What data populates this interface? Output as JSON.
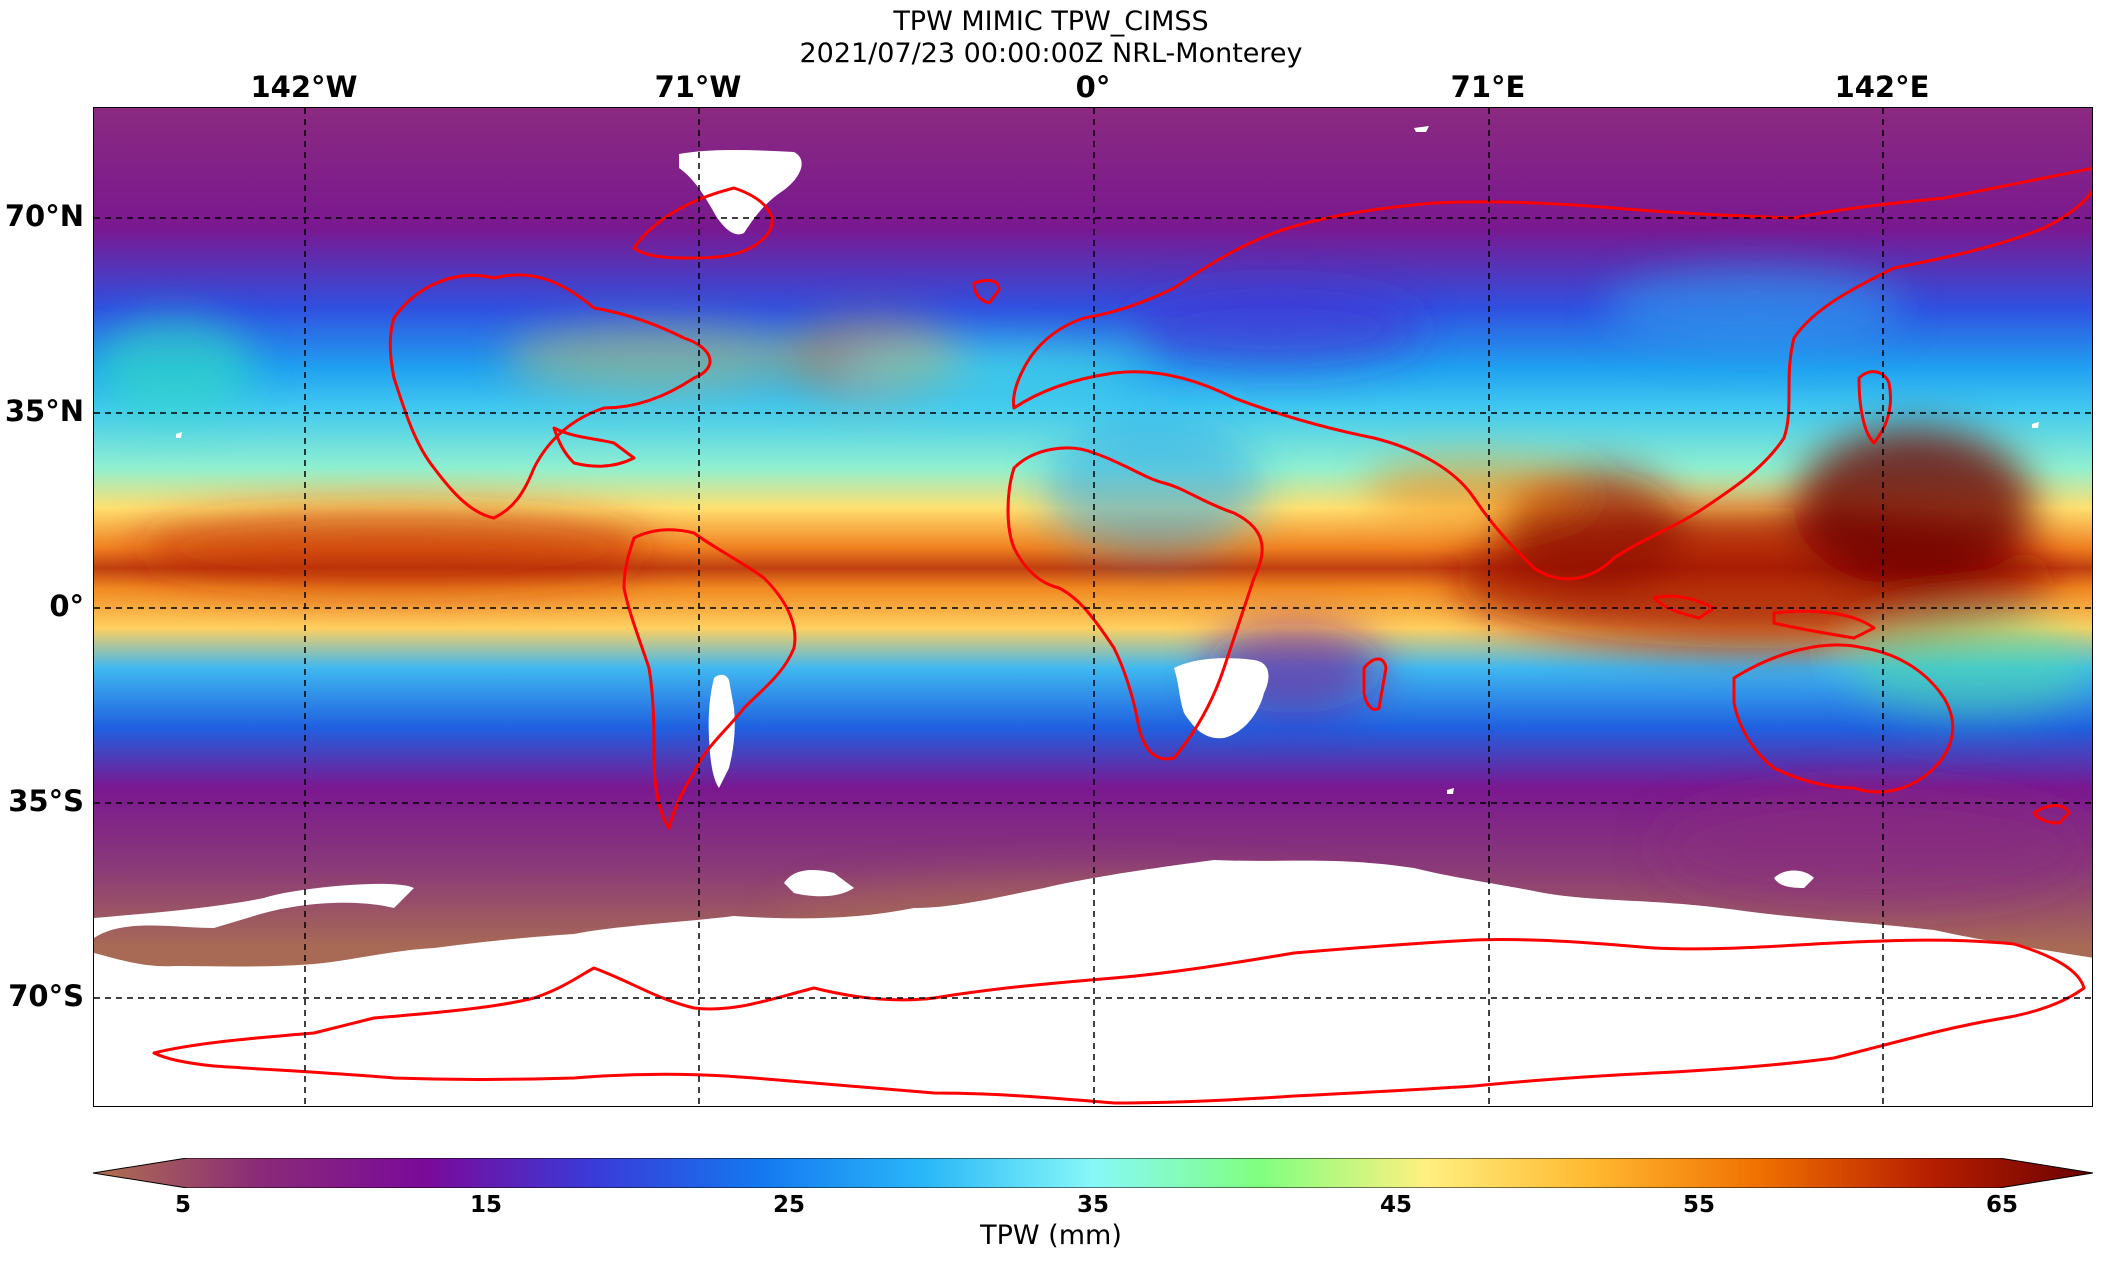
{
  "title": {
    "line1": "TPW MIMIC TPW_CIMSS",
    "line2": "2021/07/23 00:00:00Z NRL-Monterey"
  },
  "map": {
    "longitude_labels": [
      "142°W",
      "71°W",
      "0°",
      "71°E",
      "142°E"
    ],
    "latitude_labels": [
      "70°N",
      "35°N",
      "0°",
      "35°S",
      "70°S"
    ],
    "coastline_color": "#ff0000",
    "gridline_style": "dashed black",
    "missing_data_color": "#ffffff"
  },
  "colorbar": {
    "label": "TPW (mm)",
    "ticks": [
      "5",
      "15",
      "25",
      "35",
      "45",
      "55",
      "65"
    ],
    "range": [
      5,
      65
    ],
    "extend": "both",
    "colors": [
      "#b0714e",
      "#8a2a78",
      "#7a0a9a",
      "#3a3ad8",
      "#1478f0",
      "#2ab8f8",
      "#88f8f8",
      "#80ff80",
      "#fff080",
      "#ffb830",
      "#f07000",
      "#b82000",
      "#6a0000"
    ]
  }
}
